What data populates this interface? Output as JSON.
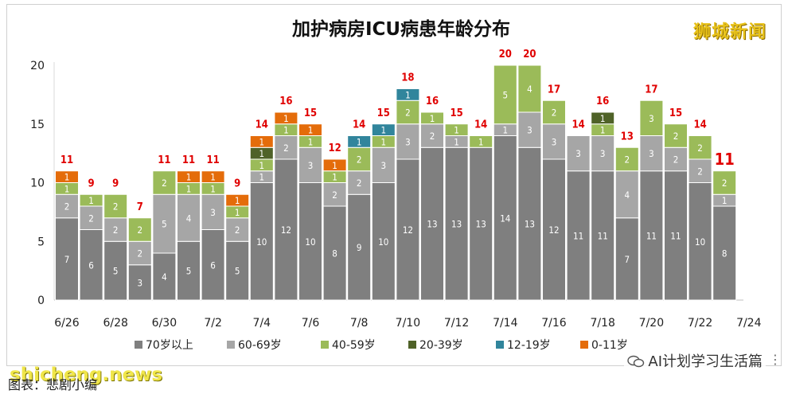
{
  "chart_data": {
    "type": "bar",
    "stacked": true,
    "title": "加护病房ICU病患年龄分布",
    "categories": [
      "6/26",
      "6/27",
      "6/28",
      "6/29",
      "6/30",
      "7/1",
      "7/2",
      "7/3",
      "7/4",
      "7/5",
      "7/6",
      "7/7",
      "7/8",
      "7/9",
      "7/10",
      "7/11",
      "7/12",
      "7/13",
      "7/14",
      "7/15",
      "7/16",
      "7/17",
      "7/18",
      "7/19",
      "7/20",
      "7/21",
      "7/22",
      "7/23"
    ],
    "x_tick_labels": [
      "6/26",
      "6/28",
      "6/30",
      "7/2",
      "7/4",
      "7/6",
      "7/8",
      "7/10",
      "7/12",
      "7/14",
      "7/16",
      "7/18",
      "7/20",
      "7/22",
      "7/24"
    ],
    "series": [
      {
        "name": "70岁以上",
        "color": "#7f7f7f",
        "values": [
          7,
          6,
          5,
          3,
          4,
          5,
          6,
          5,
          10,
          12,
          10,
          8,
          9,
          10,
          12,
          13,
          13,
          13,
          14,
          13,
          12,
          11,
          11,
          7,
          11,
          11,
          10,
          8
        ]
      },
      {
        "name": "60-69岁",
        "color": "#a6a6a6",
        "values": [
          2,
          2,
          2,
          2,
          5,
          4,
          3,
          2,
          1,
          2,
          3,
          2,
          2,
          3,
          3,
          2,
          1,
          0,
          1,
          3,
          3,
          3,
          3,
          4,
          3,
          2,
          2,
          1
        ]
      },
      {
        "name": "40-59岁",
        "color": "#9bbb59",
        "values": [
          1,
          1,
          2,
          2,
          2,
          1,
          1,
          1,
          1,
          1,
          1,
          1,
          2,
          1,
          2,
          1,
          1,
          1,
          5,
          4,
          2,
          0,
          1,
          2,
          3,
          2,
          2,
          2
        ]
      },
      {
        "name": "20-39岁",
        "color": "#4f6228",
        "values": [
          0,
          0,
          0,
          0,
          0,
          0,
          0,
          0,
          1,
          0,
          0,
          0,
          0,
          0,
          0,
          0,
          0,
          0,
          0,
          0,
          0,
          0,
          1,
          0,
          0,
          0,
          0,
          0
        ]
      },
      {
        "name": "12-19岁",
        "color": "#31859c",
        "values": [
          0,
          0,
          0,
          0,
          0,
          0,
          0,
          0,
          0,
          0,
          0,
          0,
          1,
          1,
          1,
          0,
          0,
          0,
          0,
          0,
          0,
          0,
          0,
          0,
          0,
          0,
          0,
          0
        ]
      },
      {
        "name": "0-11岁",
        "color": "#e46c0a",
        "values": [
          1,
          0,
          0,
          0,
          0,
          1,
          1,
          1,
          1,
          1,
          1,
          1,
          0,
          0,
          0,
          0,
          0,
          0,
          0,
          0,
          0,
          0,
          0,
          0,
          0,
          0,
          0,
          0
        ]
      }
    ],
    "totals": [
      11,
      9,
      9,
      7,
      11,
      11,
      11,
      9,
      14,
      16,
      15,
      12,
      14,
      15,
      18,
      16,
      15,
      14,
      20,
      20,
      17,
      14,
      16,
      13,
      17,
      15,
      14,
      11
    ],
    "ylim": [
      0,
      20
    ],
    "y_ticks": [
      0,
      5,
      10,
      15,
      20
    ],
    "grid": false,
    "legend_position": "bottom",
    "colors": {
      "total_label": "#e00000",
      "axis_text": "#222222",
      "segment_label": "#ffffff"
    }
  },
  "branding": {
    "logo_text": "狮城新闻",
    "watermark": "shicheng.news",
    "account": "AI计划学习生活篇",
    "caption": "图表：悲剧小编"
  }
}
